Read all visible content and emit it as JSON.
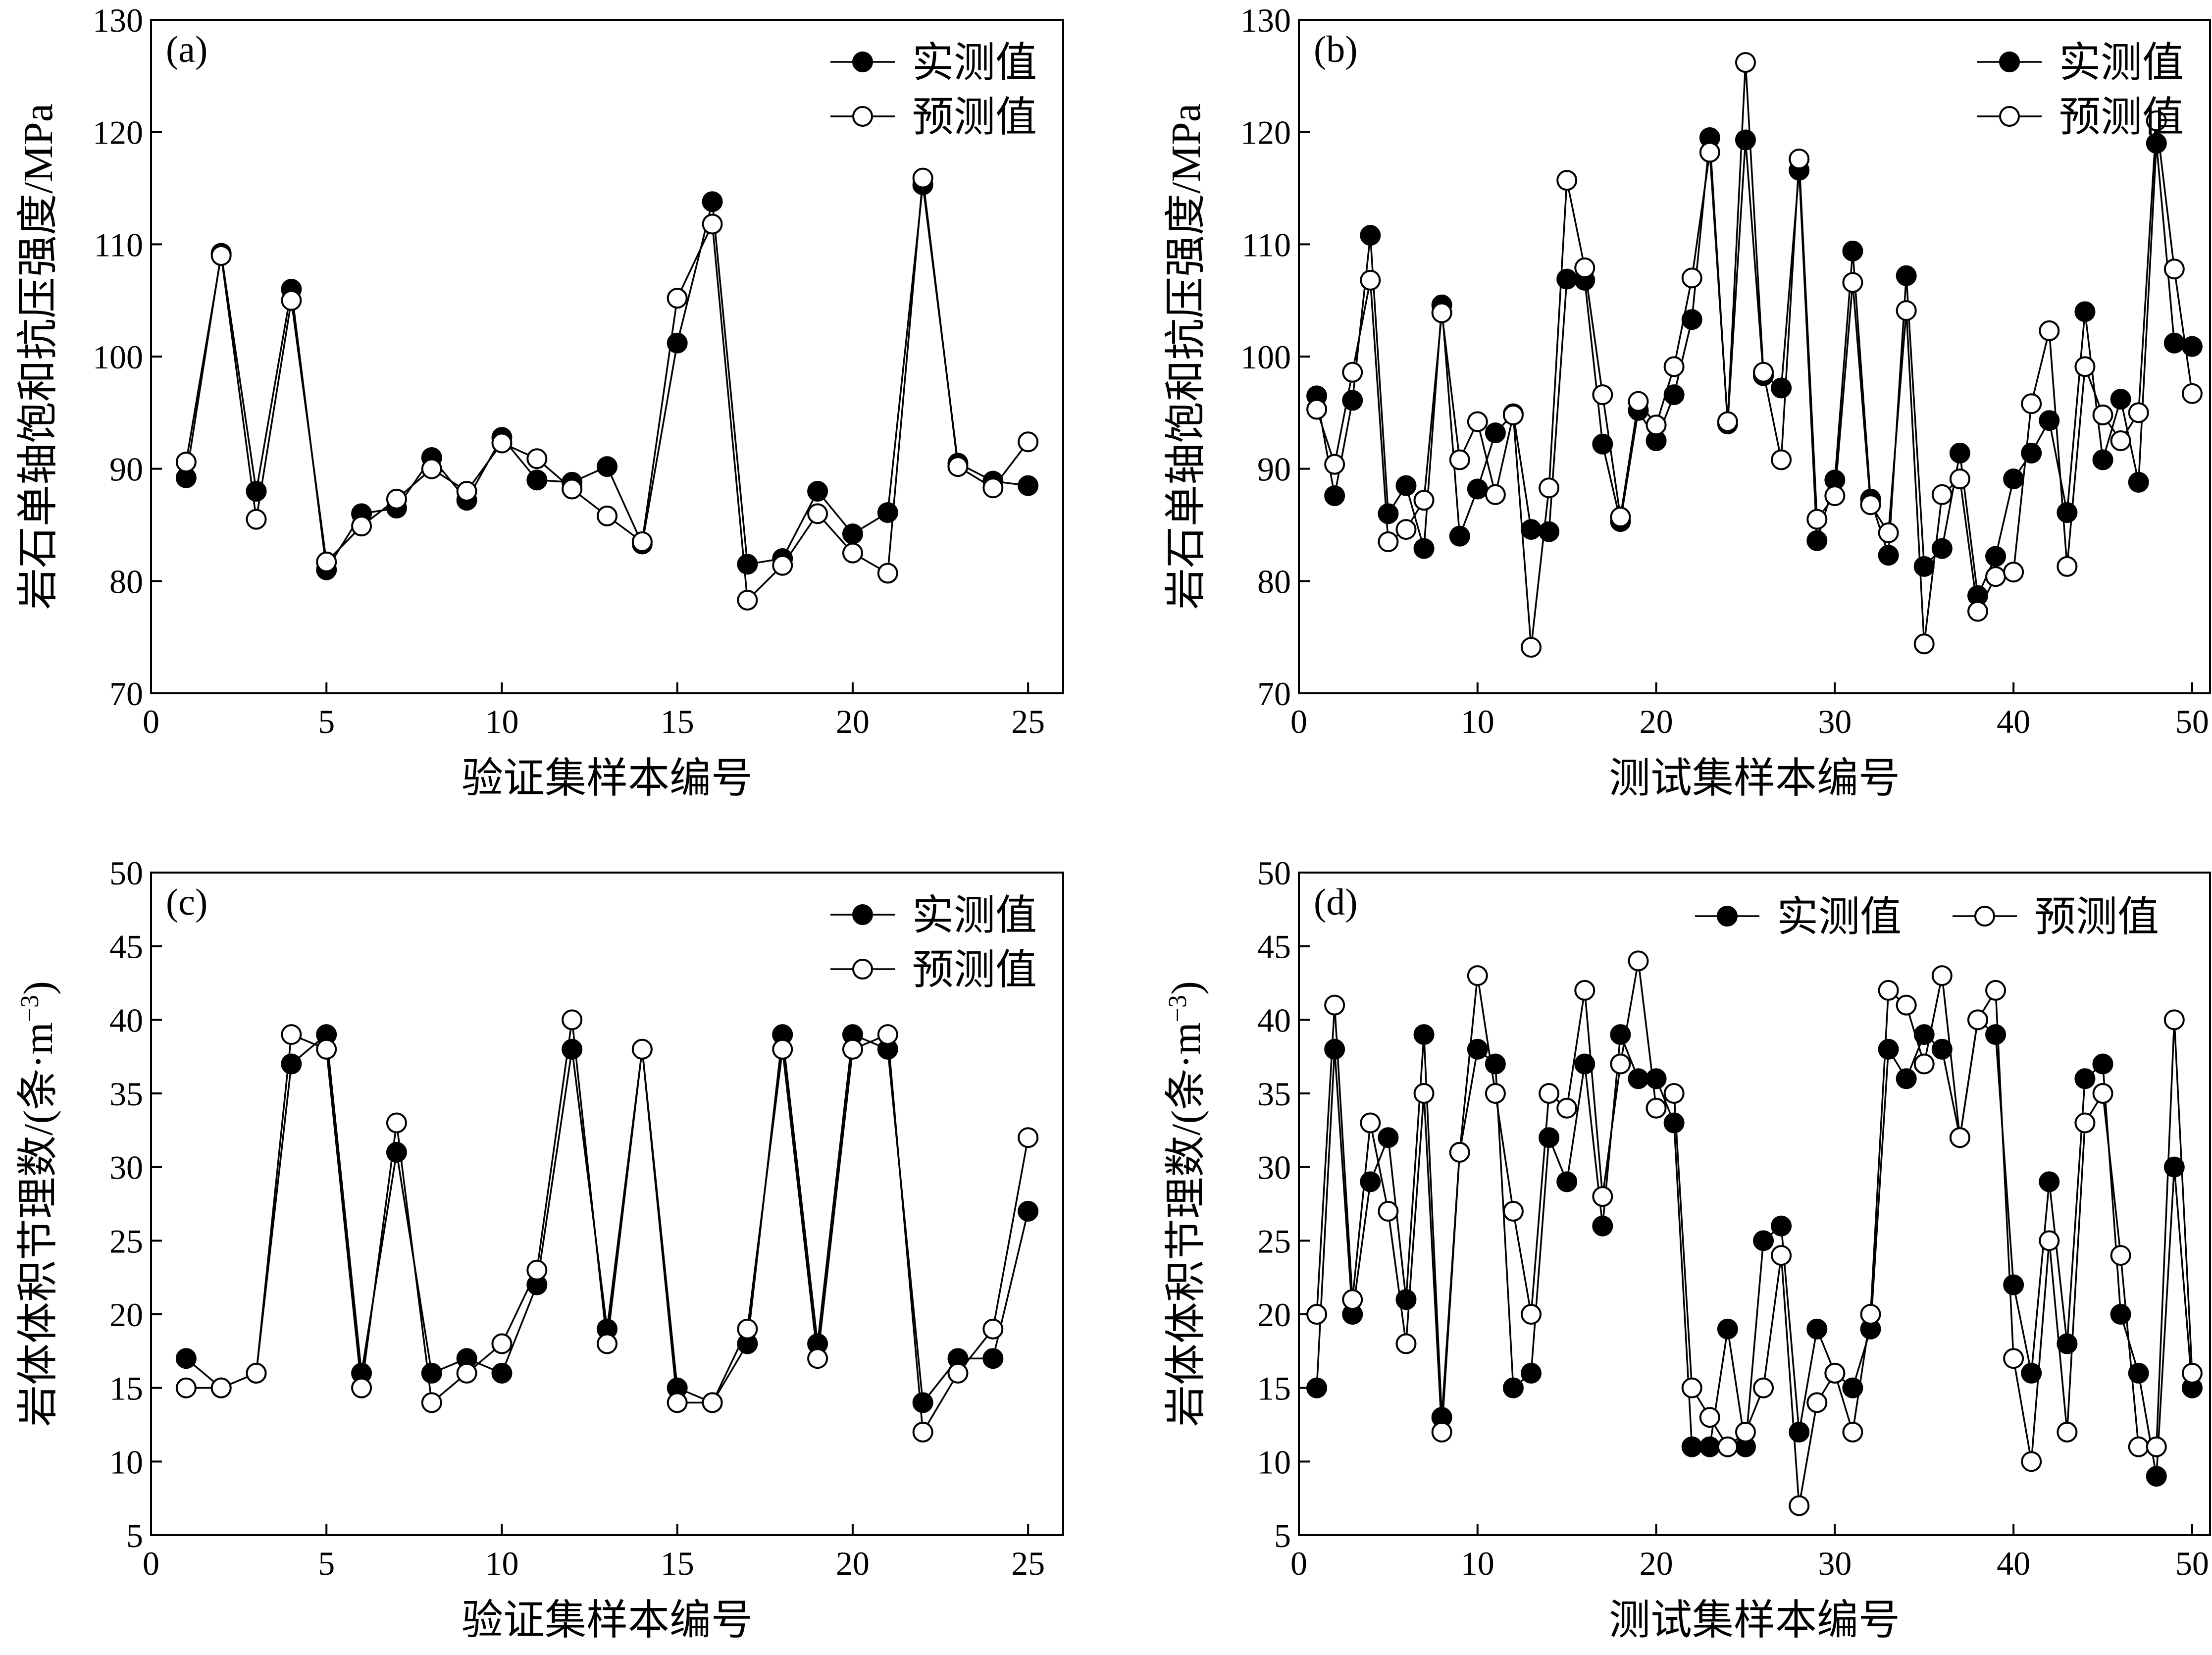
{
  "chart_data": [
    {
      "panel": "(a)",
      "type": "line",
      "xlabel": "验证集样本编号",
      "ylabel": "岩石单轴饱和抗压强度/MPa",
      "xlim": [
        0,
        26
      ],
      "ylim": [
        70,
        130
      ],
      "xticks": [
        0,
        5,
        10,
        15,
        20,
        25
      ],
      "yticks": [
        70,
        80,
        90,
        100,
        110,
        120,
        130
      ],
      "legend_position": "top-right",
      "legend_layout": "vertical",
      "x": [
        1,
        2,
        3,
        4,
        5,
        6,
        7,
        8,
        9,
        10,
        11,
        12,
        13,
        14,
        15,
        16,
        17,
        18,
        19,
        20,
        21,
        22,
        23,
        24,
        25
      ],
      "series": [
        {
          "name": "实测值",
          "marker": "filled",
          "values": [
            89.2,
            109.2,
            88.0,
            106.0,
            81.0,
            86.0,
            86.5,
            91.0,
            87.2,
            92.8,
            89.0,
            88.8,
            90.2,
            83.3,
            101.2,
            113.8,
            81.5,
            82.0,
            88.0,
            84.2,
            86.1,
            115.3,
            90.5,
            88.9,
            88.5
          ]
        },
        {
          "name": "预测值",
          "marker": "open",
          "values": [
            90.6,
            109.0,
            85.5,
            105.0,
            81.7,
            84.9,
            87.3,
            90.0,
            88.0,
            92.3,
            90.9,
            88.2,
            85.8,
            83.5,
            105.2,
            111.8,
            78.3,
            81.4,
            86.0,
            82.5,
            80.7,
            115.9,
            90.2,
            88.3,
            92.4
          ]
        }
      ]
    },
    {
      "panel": "(b)",
      "type": "line",
      "xlabel": "测试集样本编号",
      "ylabel": "岩石单轴饱和抗压强度/MPa",
      "xlim": [
        0,
        51
      ],
      "ylim": [
        70,
        130
      ],
      "xticks": [
        0,
        10,
        20,
        30,
        40,
        50
      ],
      "yticks": [
        70,
        80,
        90,
        100,
        110,
        120,
        130
      ],
      "legend_position": "top-right",
      "legend_layout": "vertical",
      "x": [
        1,
        2,
        3,
        4,
        5,
        6,
        7,
        8,
        9,
        10,
        11,
        12,
        13,
        14,
        15,
        16,
        17,
        18,
        19,
        20,
        21,
        22,
        23,
        24,
        25,
        26,
        27,
        28,
        29,
        30,
        31,
        32,
        33,
        34,
        35,
        36,
        37,
        38,
        39,
        40,
        41,
        42,
        43,
        44,
        45,
        46,
        47,
        48,
        49,
        50
      ],
      "series": [
        {
          "name": "实测值",
          "marker": "filled",
          "values": [
            96.5,
            87.6,
            96.1,
            110.8,
            86.0,
            88.5,
            82.9,
            104.6,
            84.0,
            88.2,
            93.2,
            94.9,
            84.6,
            84.4,
            106.9,
            106.8,
            92.2,
            85.3,
            95.2,
            92.5,
            96.6,
            103.3,
            119.5,
            94.0,
            119.3,
            98.3,
            97.2,
            116.6,
            83.6,
            89.0,
            109.4,
            87.3,
            82.3,
            107.2,
            81.3,
            82.9,
            91.4,
            78.7,
            82.2,
            89.1,
            91.4,
            94.3,
            86.1,
            104.0,
            90.8,
            96.2,
            88.8,
            119.0,
            101.2,
            100.9
          ]
        },
        {
          "name": "预测值",
          "marker": "open",
          "values": [
            95.3,
            90.4,
            98.6,
            106.8,
            83.5,
            84.6,
            87.2,
            103.9,
            90.8,
            94.2,
            87.7,
            94.8,
            74.1,
            88.3,
            115.7,
            107.9,
            96.6,
            85.7,
            96.0,
            93.9,
            99.1,
            107.0,
            118.2,
            94.2,
            126.2,
            98.6,
            90.8,
            117.6,
            85.5,
            87.6,
            106.6,
            86.8,
            84.3,
            104.1,
            74.4,
            87.7,
            89.1,
            77.3,
            80.4,
            80.8,
            95.8,
            102.3,
            81.3,
            99.1,
            94.8,
            92.5,
            95.0,
            121.0,
            107.8,
            96.7
          ]
        }
      ]
    },
    {
      "panel": "(c)",
      "type": "line",
      "xlabel": "验证集样本编号",
      "ylabel": "岩体体积节理数/(条·m",
      "ylabel_sup": "−3",
      "ylabel_close": ")",
      "xlim": [
        0,
        26
      ],
      "ylim": [
        5,
        50
      ],
      "xticks": [
        0,
        5,
        10,
        15,
        20,
        25
      ],
      "yticks": [
        5,
        10,
        15,
        20,
        25,
        30,
        35,
        40,
        45,
        50
      ],
      "legend_position": "top-right",
      "legend_layout": "vertical",
      "x": [
        1,
        2,
        3,
        4,
        5,
        6,
        7,
        8,
        9,
        10,
        11,
        12,
        13,
        14,
        15,
        16,
        17,
        18,
        19,
        20,
        21,
        22,
        23,
        24,
        25
      ],
      "series": [
        {
          "name": "实测值",
          "marker": "filled",
          "values": [
            17,
            15,
            16,
            37,
            39,
            16,
            31,
            16,
            17,
            16,
            22,
            38,
            19,
            38,
            15,
            14,
            18,
            39,
            18,
            39,
            38,
            14,
            17,
            17,
            27
          ]
        },
        {
          "name": "预测值",
          "marker": "open",
          "values": [
            15,
            15,
            16,
            39,
            38,
            15,
            33,
            14,
            16,
            18,
            23,
            40,
            18,
            38,
            14,
            14,
            19,
            38,
            17,
            38,
            39,
            12,
            16,
            19,
            32
          ]
        }
      ]
    },
    {
      "panel": "(d)",
      "type": "line",
      "xlabel": "测试集样本编号",
      "ylabel": "岩体体积节理数/(条·m",
      "ylabel_sup": "−3",
      "ylabel_close": ")",
      "xlim": [
        0,
        51
      ],
      "ylim": [
        5,
        50
      ],
      "xticks": [
        0,
        10,
        20,
        30,
        40,
        50
      ],
      "yticks": [
        5,
        10,
        15,
        20,
        25,
        30,
        35,
        40,
        45,
        50
      ],
      "legend_position": "top-right",
      "legend_layout": "horizontal",
      "x": [
        1,
        2,
        3,
        4,
        5,
        6,
        7,
        8,
        9,
        10,
        11,
        12,
        13,
        14,
        15,
        16,
        17,
        18,
        19,
        20,
        21,
        22,
        23,
        24,
        25,
        26,
        27,
        28,
        29,
        30,
        31,
        32,
        33,
        34,
        35,
        36,
        37,
        38,
        39,
        40,
        41,
        42,
        43,
        44,
        45,
        46,
        47,
        48,
        49,
        50
      ],
      "series": [
        {
          "name": "实测值",
          "marker": "filled",
          "values": [
            15,
            38,
            20,
            29,
            32,
            21,
            39,
            13,
            31,
            38,
            37,
            15,
            16,
            32,
            29,
            37,
            26,
            39,
            36,
            36,
            33,
            11,
            11,
            19,
            11,
            25,
            26,
            12,
            19,
            16,
            15,
            19,
            38,
            36,
            39,
            38,
            32,
            40,
            39,
            22,
            16,
            29,
            18,
            36,
            37,
            20,
            16,
            9,
            30,
            15
          ]
        },
        {
          "name": "预测值",
          "marker": "open",
          "values": [
            20,
            41,
            21,
            33,
            27,
            18,
            35,
            12,
            31,
            43,
            35,
            27,
            20,
            35,
            34,
            42,
            28,
            37,
            44,
            34,
            35,
            15,
            13,
            11,
            12,
            15,
            24,
            7,
            14,
            16,
            12,
            20,
            42,
            41,
            37,
            43,
            32,
            40,
            42,
            17,
            10,
            25,
            12,
            33,
            35,
            24,
            11,
            11,
            40,
            16
          ]
        }
      ]
    }
  ]
}
